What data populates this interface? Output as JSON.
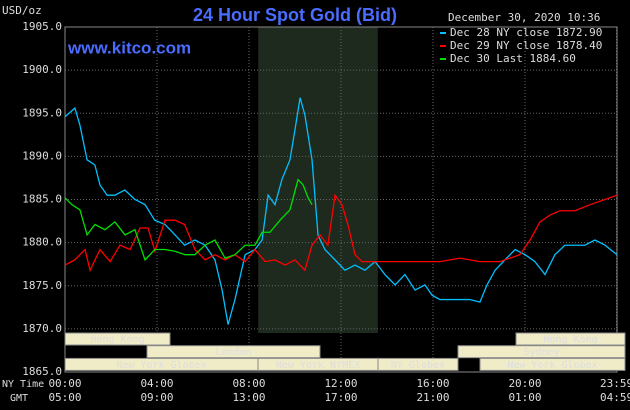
{
  "chart_data": {
    "type": "line",
    "title": "24 Hour Spot Gold (Bid)",
    "watermark": "www.kitco.com",
    "y_axis_label": "USD/oz",
    "timestamp": "December 30, 2020 10:36",
    "x_row_labels": [
      "NY Time",
      "GMT"
    ],
    "xlim": [
      0,
      24
    ],
    "xticks": [
      {
        "value": 0,
        "label": "00:00"
      },
      {
        "value": 4,
        "label": "04:00"
      },
      {
        "value": 8,
        "label": "08:00"
      },
      {
        "value": 12,
        "label": "12:00"
      },
      {
        "value": 16,
        "label": "16:00"
      },
      {
        "value": 20,
        "label": "20:00"
      },
      {
        "value": 23.98,
        "label": "23:59"
      }
    ],
    "gmt_labels": [
      "05:00",
      "09:00",
      "13:00",
      "17:00",
      "21:00",
      "01:00",
      "04:59"
    ],
    "ylim": [
      1865,
      1905
    ],
    "yticks": [
      {
        "value": 1865,
        "label": "1865.0"
      },
      {
        "value": 1870,
        "label": "1870.0"
      },
      {
        "value": 1875,
        "label": "1875.0"
      },
      {
        "value": 1880,
        "label": "1880.0"
      },
      {
        "value": 1885,
        "label": "1885.0"
      },
      {
        "value": 1890,
        "label": "1890.0"
      },
      {
        "value": 1895,
        "label": "1895.0"
      },
      {
        "value": 1900,
        "label": "1900.0"
      },
      {
        "value": 1905,
        "label": "1905.0"
      }
    ],
    "grid": true,
    "sessions": [
      "Hong Kong",
      "London",
      "New York Globex",
      "New York NYMEX",
      "NY Globex",
      "Hong Kong",
      "Sydney",
      "New York Globex"
    ],
    "series": [
      {
        "name": "Dec 28 NY close 1872.90",
        "color": "#00c0ff",
        "x": [
          0,
          0.43,
          0.65,
          0.96,
          1.3,
          1.52,
          1.83,
          2.17,
          2.6,
          3.04,
          3.48,
          3.9,
          4.35,
          4.78,
          5.2,
          5.65,
          6.09,
          6.52,
          6.83,
          7.09,
          7.39,
          7.83,
          8.26,
          8.57,
          8.83,
          9.13,
          9.43,
          9.78,
          10,
          10.22,
          10.43,
          10.74,
          11,
          11.3,
          11.74,
          12.17,
          12.61,
          13.04,
          13.48,
          13.91,
          14.35,
          14.78,
          15.22,
          15.65,
          15.96,
          16.3,
          16.96,
          17.6,
          18.04,
          18.35,
          18.7,
          19.13,
          19.57,
          20,
          20.43,
          20.87,
          21.3,
          21.74,
          22.17,
          22.6,
          23.04,
          23.48,
          24
        ],
        "values": [
          1894.6,
          1895.6,
          1893.6,
          1889.6,
          1889,
          1886.7,
          1885.5,
          1885.5,
          1886.1,
          1885,
          1884.4,
          1882.6,
          1882.1,
          1880.9,
          1879.7,
          1880.3,
          1879.7,
          1878,
          1874.5,
          1870.5,
          1873.4,
          1878.6,
          1879.2,
          1880.3,
          1885.5,
          1884.4,
          1887.3,
          1889.6,
          1893.1,
          1896.8,
          1894.8,
          1889.6,
          1880.9,
          1879.2,
          1878,
          1876.8,
          1877.4,
          1876.8,
          1877.8,
          1876.3,
          1875.1,
          1876.3,
          1874.5,
          1875.1,
          1873.9,
          1873.4,
          1873.4,
          1873.4,
          1873.1,
          1875.1,
          1876.8,
          1878,
          1879.2,
          1878.6,
          1877.8,
          1876.3,
          1878.6,
          1879.7,
          1879.7,
          1879.7,
          1880.3,
          1879.7,
          1878.6
        ]
      },
      {
        "name": "Dec 29 NY close 1878.40",
        "color": "#ff0000",
        "x": [
          0,
          0.43,
          0.87,
          1.09,
          1.52,
          1.96,
          2.39,
          2.83,
          3.26,
          3.61,
          3.91,
          4.35,
          4.78,
          5.2,
          5.65,
          6.09,
          6.52,
          6.96,
          7.39,
          7.83,
          8.26,
          8.7,
          9.13,
          9.57,
          10,
          10.43,
          10.74,
          11.09,
          11.43,
          11.74,
          12.04,
          12.3,
          12.61,
          12.91,
          13.26,
          13.7,
          14.57,
          15.43,
          16.3,
          17.17,
          18.04,
          18.91,
          19.78,
          20.22,
          20.65,
          21.09,
          21.52,
          22.17,
          22.83,
          23.48,
          24
        ],
        "values": [
          1877.4,
          1878,
          1879.2,
          1876.8,
          1879.2,
          1877.8,
          1879.7,
          1879.2,
          1881.7,
          1881.7,
          1879,
          1882.6,
          1882.6,
          1882.1,
          1879.2,
          1878,
          1878.6,
          1878,
          1878.6,
          1877.8,
          1879.2,
          1877.8,
          1878,
          1877.4,
          1878,
          1876.8,
          1879.7,
          1880.9,
          1879.7,
          1885.5,
          1884.4,
          1882.1,
          1878.6,
          1877.8,
          1877.8,
          1877.8,
          1877.8,
          1877.8,
          1877.8,
          1878.2,
          1877.8,
          1877.8,
          1878.6,
          1880.3,
          1882.4,
          1883.2,
          1883.7,
          1883.7,
          1884.4,
          1885,
          1885.5
        ]
      },
      {
        "name": "Dec 30 Last 1884.60",
        "color": "#00e000",
        "x": [
          0,
          0.3,
          0.65,
          0.96,
          1.3,
          1.74,
          2.17,
          2.61,
          3.04,
          3.48,
          3.91,
          4.35,
          4.78,
          5.22,
          5.65,
          6.09,
          6.52,
          6.96,
          7.39,
          7.83,
          8.26,
          8.57,
          8.91,
          9.35,
          9.78,
          10.13,
          10.35,
          10.57,
          10.74
        ],
        "values": [
          1885.2,
          1884.4,
          1883.8,
          1880.9,
          1882.1,
          1881.5,
          1882.4,
          1880.9,
          1881.5,
          1878,
          1879.2,
          1879.2,
          1879,
          1878.6,
          1878.6,
          1879.7,
          1880.3,
          1878.2,
          1878.6,
          1879.7,
          1879.7,
          1881.2,
          1881.2,
          1882.6,
          1883.8,
          1887.3,
          1886.7,
          1885.2,
          1884.4
        ]
      }
    ]
  }
}
